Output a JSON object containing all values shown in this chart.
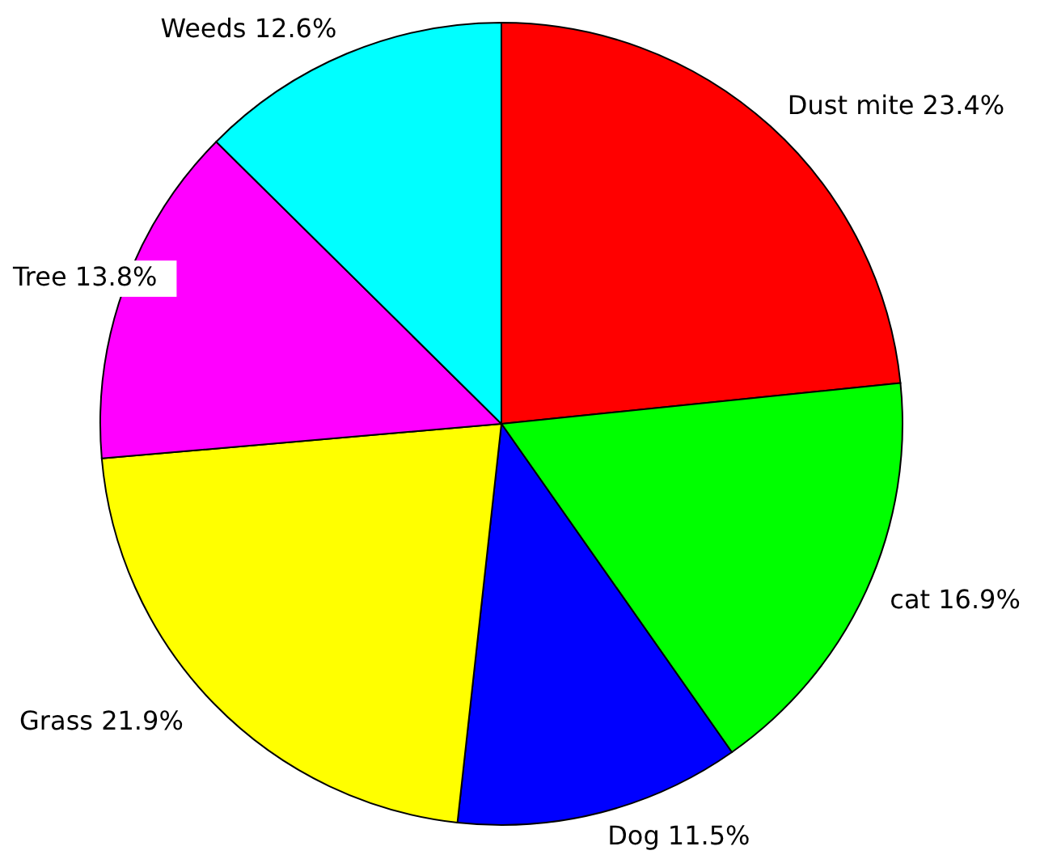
{
  "chart_data": {
    "type": "pie",
    "categories": [
      "Dust mite",
      "cat",
      "Dog",
      "Grass",
      "Tree",
      "Weeds"
    ],
    "values": [
      23.4,
      16.9,
      11.5,
      21.9,
      13.8,
      12.6
    ],
    "value_labels": [
      "23.4%",
      "16.9%",
      "11.5%",
      "21.9%",
      "13.8%",
      "12.6%"
    ],
    "colors": [
      "#ff0000",
      "#00ff00",
      "#0000ff",
      "#ffff00",
      "#ff00ff",
      "#00ffff"
    ]
  }
}
